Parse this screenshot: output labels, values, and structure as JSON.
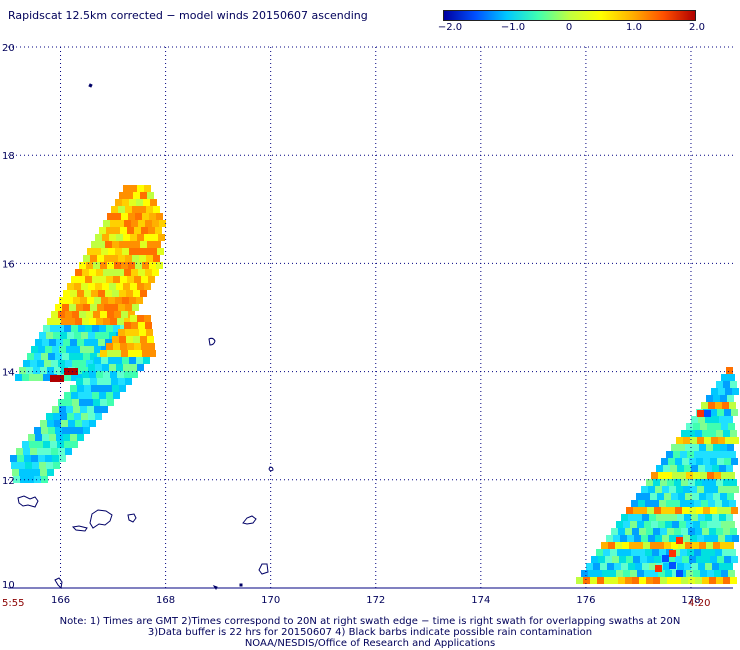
{
  "title": "Rapidscat 12.5km corrected − model winds 20150607 ascending",
  "colorbar": {
    "ticks": [
      "−2.0",
      "−1.0",
      "0",
      "1.0",
      "2.0"
    ],
    "tick_values": [
      -2.0,
      -1.0,
      0,
      1.0,
      2.0
    ],
    "range": [
      -2.0,
      2.0
    ],
    "colors": [
      "#0000a0",
      "#0050ff",
      "#00c8ff",
      "#40ffb0",
      "#c0ff40",
      "#ffff00",
      "#ffb000",
      "#ff5000",
      "#b00000"
    ]
  },
  "map": {
    "lon_range": [
      165,
      178.8
    ],
    "lat_range": [
      10,
      20
    ],
    "x_ticks": [
      "166",
      "168",
      "170",
      "172",
      "174",
      "176",
      "178"
    ],
    "x_tick_values": [
      166,
      168,
      170,
      172,
      174,
      176,
      178
    ],
    "y_ticks": [
      "20",
      "18",
      "16",
      "14",
      "12",
      "10"
    ],
    "y_tick_values": [
      20,
      18,
      16,
      14,
      12,
      10
    ],
    "grid": "dotted",
    "coastline_color": "#000066"
  },
  "times": {
    "left": "5:55",
    "right": "4:20"
  },
  "notes": [
    "Note: 1) Times are GMT 2)Times correspond to 20N at right swath edge − time is right swath for overlapping swaths at 20N",
    "3)Data buffer is 22 hrs for 20150607 4) Black barbs indicate possible rain contamination",
    "NOAA/NESDIS/Office of Research and Applications"
  ]
}
